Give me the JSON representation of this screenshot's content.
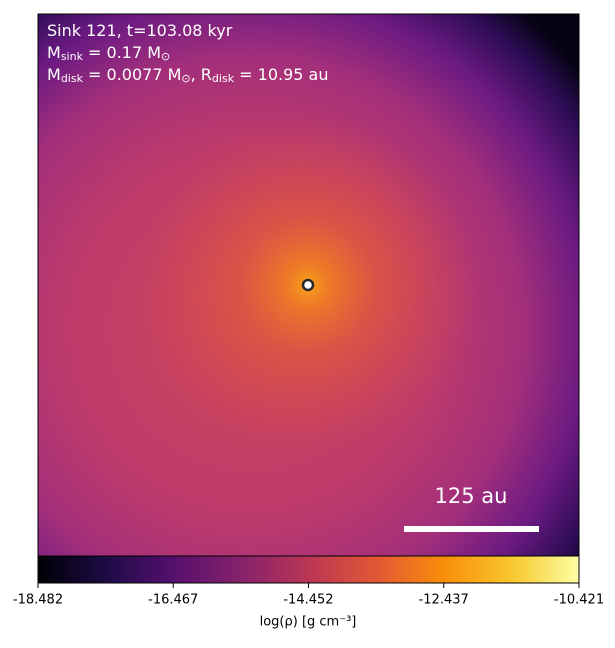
{
  "chart_data": {
    "type": "image",
    "annotations": [
      [
        {
          "text": "Sink 121, t=103.08 kyr"
        }
      ],
      [
        {
          "text": "M"
        },
        {
          "text": "sink",
          "sub": true
        },
        {
          "text": " = 0.17 M"
        },
        {
          "text": "⊙",
          "sub": true
        }
      ],
      [
        {
          "text": "M"
        },
        {
          "text": "disk",
          "sub": true
        },
        {
          "text": " = 0.0077 M"
        },
        {
          "text": "⊙",
          "sub": true
        },
        {
          "text": ", R"
        },
        {
          "text": "disk",
          "sub": true
        },
        {
          "text": " = 10.95 au"
        }
      ]
    ],
    "scale_bar_label": "125 au",
    "colorbar_label": "log(ρ) [g cm⁻³]",
    "clim": [
      -18.482,
      -10.421
    ],
    "cticks": [
      -18.482,
      -16.467,
      -14.452,
      -12.437,
      -10.421
    ]
  }
}
